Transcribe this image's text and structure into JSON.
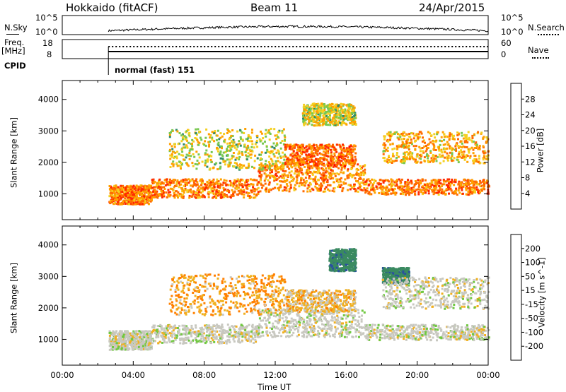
{
  "header": {
    "radar": "Hokkaido (fitACF)",
    "beam": "Beam 11",
    "date": "24/Apr/2015"
  },
  "status_panel": {
    "nsky_label": "N.Sky",
    "nsky_ticks": [
      "10^5",
      "10^0"
    ],
    "nsearch_label": "N.Search",
    "nsearch_ticks": [
      "10^5",
      "10^0"
    ],
    "freq_label_1": "Freq.",
    "freq_label_2": "[MHz]",
    "freq_ticks": [
      "18",
      "8"
    ],
    "nave_label": "Nave",
    "nave_ticks": [
      "60",
      "0"
    ],
    "cpid_label": "CPID",
    "cpid_value": "normal (fast) 151"
  },
  "chart_data": [
    {
      "type": "heatmap",
      "title": "",
      "xlabel": "Time UT",
      "ylabel": "Slant Range [km]",
      "colorbar_label": "Power [dB]",
      "xlim_hours": [
        0,
        24
      ],
      "x_tick_labels": [
        "00:00",
        "04:00",
        "08:00",
        "12:00",
        "16:00",
        "20:00",
        "00:00"
      ],
      "ylim_km": [
        180,
        4600
      ],
      "y_tick_labels": [
        "1000",
        "2000",
        "3000",
        "4000"
      ],
      "colorbar_ticks": [
        "4",
        "8",
        "12",
        "16",
        "20",
        "24",
        "28"
      ],
      "colorbar_range": [
        0,
        32
      ],
      "colorbar_colors": [
        "#0018ff",
        "#2452a8",
        "#2e6f8e",
        "#2f8c6a",
        "#78c850",
        "#f4d020",
        "#ffa000",
        "#ff6a00",
        "#ff2a00",
        "#ff0000"
      ],
      "data_start_hour": 2.6,
      "echo_bands": [
        {
          "t": [
            2.6,
            5.0
          ],
          "range_km": [
            700,
            1300
          ],
          "value": 28
        },
        {
          "t": [
            5.0,
            11.0
          ],
          "range_km": [
            900,
            1500
          ],
          "value": 28
        },
        {
          "t": [
            11.0,
            17.0
          ],
          "range_km": [
            1100,
            2000
          ],
          "value": 27
        },
        {
          "t": [
            17.0,
            24.0
          ],
          "range_km": [
            1000,
            1500
          ],
          "value": 28
        },
        {
          "t": [
            6.0,
            12.5
          ],
          "range_km": [
            1800,
            3100
          ],
          "value": 22
        },
        {
          "t": [
            12.5,
            16.5
          ],
          "range_km": [
            1900,
            2600
          ],
          "value": 29
        },
        {
          "t": [
            13.5,
            16.5
          ],
          "range_km": [
            3200,
            3900
          ],
          "value": 22
        },
        {
          "t": [
            18.0,
            24.0
          ],
          "range_km": [
            2000,
            3000
          ],
          "value": 25
        }
      ]
    },
    {
      "type": "heatmap",
      "title": "",
      "xlabel": "Time UT",
      "ylabel": "Slant Range [km]",
      "colorbar_label": "Velocity [m s^-1]",
      "xlim_hours": [
        0,
        24
      ],
      "x_tick_labels": [
        "00:00",
        "04:00",
        "08:00",
        "12:00",
        "16:00",
        "20:00",
        "00:00"
      ],
      "ylim_km": [
        180,
        4600
      ],
      "y_tick_labels": [
        "1000",
        "2000",
        "3000",
        "4000"
      ],
      "colorbar_ticks": [
        "200",
        "100",
        "50",
        "15",
        "-15",
        "-50",
        "-100",
        "-200"
      ],
      "colorbar_colors": [
        "#1030c0",
        "#2a50a0",
        "#3a8a60",
        "#70c840",
        "#c8c8c0",
        "#f0b020",
        "#ff8000",
        "#ff4000",
        "#ff0000"
      ],
      "data_start_hour": 2.6,
      "echo_bands": [
        {
          "t": [
            2.6,
            5.0
          ],
          "range_km": [
            700,
            1300
          ],
          "value": 0
        },
        {
          "t": [
            5.0,
            11.0
          ],
          "range_km": [
            900,
            1500
          ],
          "value": 0
        },
        {
          "t": [
            11.0,
            17.0
          ],
          "range_km": [
            1100,
            2000
          ],
          "value": 0
        },
        {
          "t": [
            17.0,
            24.0
          ],
          "range_km": [
            1000,
            1500
          ],
          "value": 0
        },
        {
          "t": [
            6.0,
            12.5
          ],
          "range_km": [
            1800,
            3100
          ],
          "value": -30
        },
        {
          "t": [
            12.5,
            16.5
          ],
          "range_km": [
            1900,
            2600
          ],
          "value": -20
        },
        {
          "t": [
            15.0,
            16.5
          ],
          "range_km": [
            3200,
            3900
          ],
          "value": 60
        },
        {
          "t": [
            18.0,
            19.5
          ],
          "range_km": [
            2800,
            3300
          ],
          "value": 60
        },
        {
          "t": [
            18.0,
            24.0
          ],
          "range_km": [
            2000,
            3000
          ],
          "value": 0
        }
      ]
    }
  ]
}
